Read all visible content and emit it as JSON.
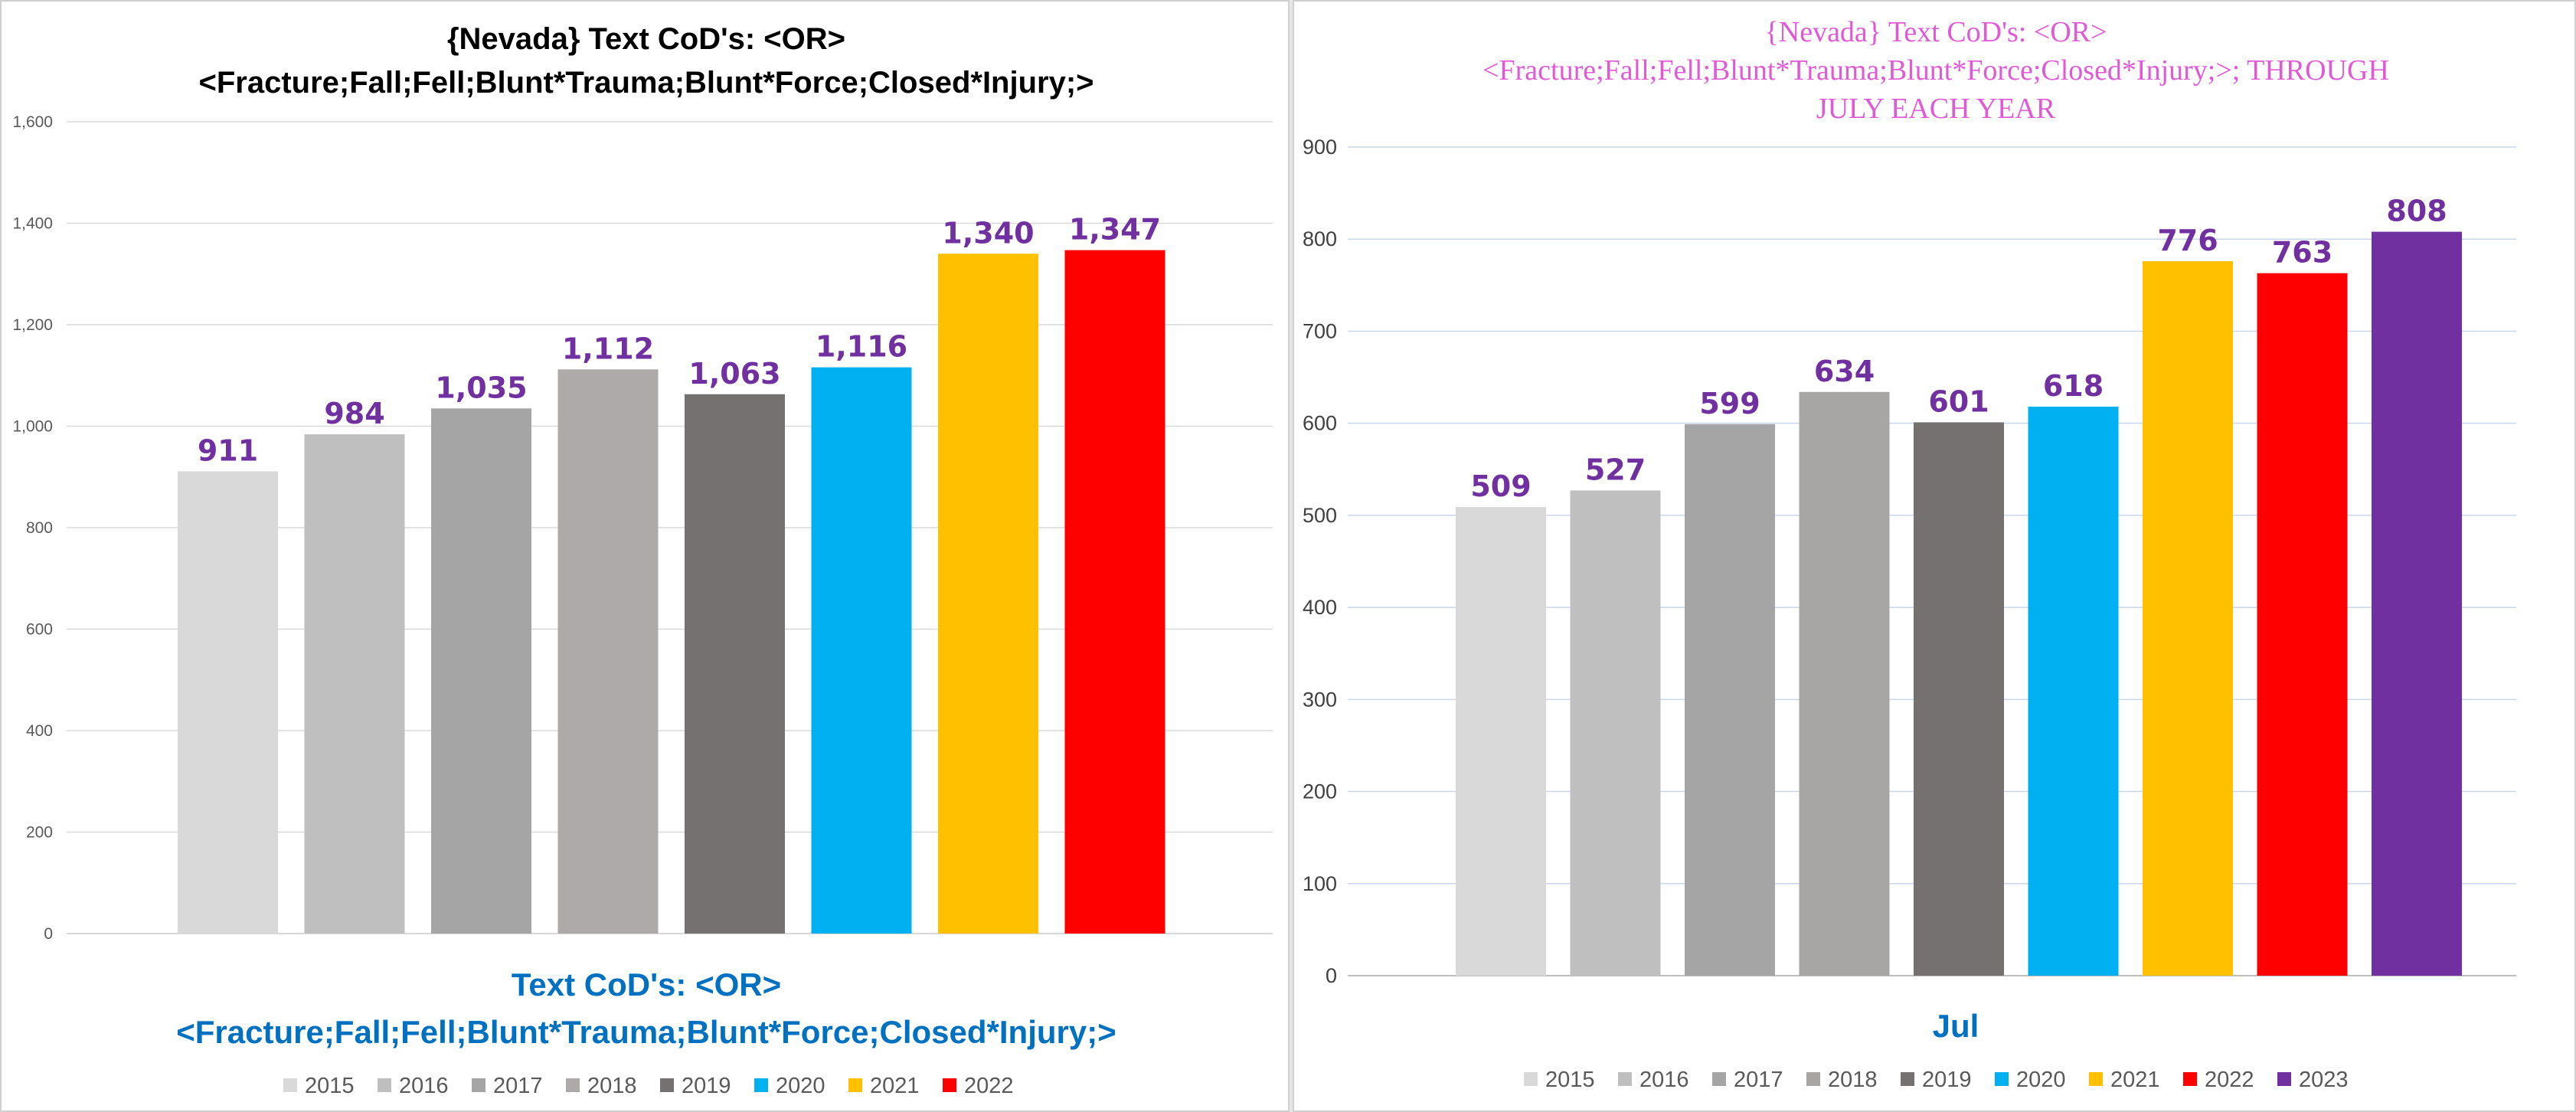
{
  "chart_data": [
    {
      "type": "bar",
      "title_lines": [
        "{Nevada}  Text CoD's: <OR>",
        "<Fracture;Fall;Fell;Blunt*Trauma;Blunt*Force;Closed*Injury;>"
      ],
      "xlabel_lines": [
        "Text CoD's: <OR>",
        "<Fracture;Fall;Fell;Blunt*Trauma;Blunt*Force;Closed*Injury;>"
      ],
      "ylabel": "",
      "ylim": [
        0,
        1600
      ],
      "yticks": [
        0,
        200,
        400,
        600,
        800,
        1000,
        1200,
        1400,
        1600
      ],
      "ytick_labels": [
        "0",
        "200",
        "400",
        "600",
        "800",
        "1,000",
        "1,200",
        "1,400",
        "1,600"
      ],
      "grid": true,
      "legend_position": "bottom",
      "series": [
        {
          "name": "2015",
          "values": [
            911
          ],
          "label": "911",
          "color": "#d9d9d9"
        },
        {
          "name": "2016",
          "values": [
            984
          ],
          "label": "984",
          "color": "#bfbfbf"
        },
        {
          "name": "2017",
          "values": [
            1035
          ],
          "label": "1,035",
          "color": "#a5a5a5"
        },
        {
          "name": "2018",
          "values": [
            1112
          ],
          "label": "1,112",
          "color": "#aeaaaa"
        },
        {
          "name": "2019",
          "values": [
            1063
          ],
          "label": "1,063",
          "color": "#767171"
        },
        {
          "name": "2020",
          "values": [
            1116
          ],
          "label": "1,116",
          "color": "#00b0f0"
        },
        {
          "name": "2021",
          "values": [
            1340
          ],
          "label": "1,340",
          "color": "#ffc000"
        },
        {
          "name": "2022",
          "values": [
            1347
          ],
          "label": "1,347",
          "color": "#ff0000"
        }
      ],
      "colors": {
        "title": "#000000",
        "xlabel": "#0070c0",
        "data_label": "#7030a0",
        "grid": "#d9d9d9"
      }
    },
    {
      "type": "bar",
      "title_lines": [
        "{Nevada}   Text CoD's: <OR>",
        "<Fracture;Fall;Fell;Blunt*Trauma;Blunt*Force;Closed*Injury;>; THROUGH",
        "JULY EACH YEAR"
      ],
      "categories": [
        "Jul"
      ],
      "xlabel": "Jul",
      "ylim": [
        0,
        900
      ],
      "yticks": [
        0,
        100,
        200,
        300,
        400,
        500,
        600,
        700,
        800,
        900
      ],
      "ytick_labels": [
        "0",
        "100",
        "200",
        "300",
        "400",
        "500",
        "600",
        "700",
        "800",
        "900"
      ],
      "grid": true,
      "legend_position": "bottom",
      "series": [
        {
          "name": "2015",
          "values": [
            509
          ],
          "label": "509",
          "color": "#d9d9d9"
        },
        {
          "name": "2016",
          "values": [
            527
          ],
          "label": "527",
          "color": "#bfbfbf"
        },
        {
          "name": "2017",
          "values": [
            599
          ],
          "label": "599",
          "color": "#a5a5a5"
        },
        {
          "name": "2018",
          "values": [
            634
          ],
          "label": "634",
          "color": "#a8a5a5"
        },
        {
          "name": "2019",
          "values": [
            601
          ],
          "label": "601",
          "color": "#767171"
        },
        {
          "name": "2020",
          "values": [
            618
          ],
          "label": "618",
          "color": "#00b0f0"
        },
        {
          "name": "2021",
          "values": [
            776
          ],
          "label": "776",
          "color": "#ffc000"
        },
        {
          "name": "2022",
          "values": [
            763
          ],
          "label": "763",
          "color": "#ff0000"
        },
        {
          "name": "2023",
          "values": [
            808
          ],
          "label": "808",
          "color": "#7030a0"
        }
      ],
      "colors": {
        "title": "#e05ad6",
        "xlabel": "#0070c0",
        "data_label": "#7030a0",
        "grid": "#c9d7ec"
      }
    }
  ]
}
